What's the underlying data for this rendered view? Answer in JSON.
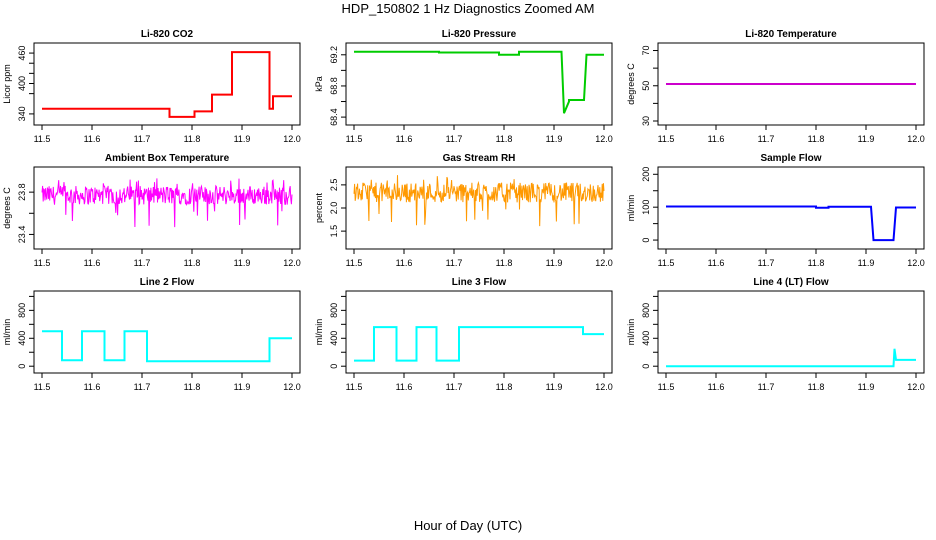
{
  "page": {
    "title": "HDP_150802  1 Hz Diagnostics Zoomed AM",
    "xlabel": "Hour of Day (UTC)"
  },
  "chart_data": [
    {
      "type": "line",
      "title": "Li-820 CO2",
      "ylabel": "Licor ppm",
      "color": "#ff0000",
      "xlim": [
        11.5,
        12.0
      ],
      "ylim": [
        326,
        472
      ],
      "xticks": [
        "11.5",
        "11.6",
        "11.7",
        "11.8",
        "11.9",
        "12.0"
      ],
      "yticks": [
        340,
        400,
        460
      ],
      "yticks_minor": [
        380,
        420,
        440
      ],
      "x": [
        11.5,
        11.755,
        11.755,
        11.805,
        11.805,
        11.84,
        11.84,
        11.88,
        11.88,
        11.955,
        11.955,
        11.962,
        11.962,
        12.0
      ],
      "y": [
        350,
        350,
        334,
        334,
        345,
        345,
        378,
        378,
        462,
        462,
        350,
        350,
        375,
        375
      ]
    },
    {
      "type": "line",
      "title": "Li-820 Pressure",
      "ylabel": "kPa",
      "color": "#00cc00",
      "xlim": [
        11.5,
        12.0
      ],
      "ylim": [
        68.35,
        69.3
      ],
      "xticks": [
        "11.5",
        "11.6",
        "11.7",
        "11.8",
        "11.9",
        "12.0"
      ],
      "yticks": [
        "68.4",
        "68.8",
        "69.2"
      ],
      "yticks_minor": [
        "68.6",
        "69.0"
      ],
      "x": [
        11.5,
        11.67,
        11.67,
        11.79,
        11.79,
        11.83,
        11.83,
        11.915,
        11.92,
        11.93,
        11.93,
        11.96,
        11.965,
        11.975,
        12.0
      ],
      "y": [
        69.24,
        69.24,
        69.23,
        69.23,
        69.2,
        69.2,
        69.24,
        69.24,
        68.45,
        68.6,
        68.62,
        68.62,
        69.2,
        69.2,
        69.2
      ]
    },
    {
      "type": "line",
      "title": "Li-820 Temperature",
      "ylabel": "degrees C",
      "color": "#cc00cc",
      "xlim": [
        11.5,
        12.0
      ],
      "ylim": [
        30,
        72
      ],
      "xticks": [
        "11.5",
        "11.6",
        "11.7",
        "11.8",
        "11.9",
        "12.0"
      ],
      "yticks": [
        30,
        50,
        70
      ],
      "yticks_minor": [
        40,
        60
      ],
      "x": [
        11.5,
        12.0
      ],
      "y": [
        51,
        51
      ]
    },
    {
      "type": "line",
      "title": "Ambient Box Temperature",
      "ylabel": "degrees C",
      "color": "#ff00ff",
      "xlim": [
        11.5,
        12.0
      ],
      "ylim": [
        23.3,
        24.0
      ],
      "xticks": [
        "11.5",
        "11.6",
        "11.7",
        "11.8",
        "11.9",
        "12.0"
      ],
      "yticks": [
        "23.4",
        "23.8"
      ],
      "yticks_minor": [
        "23.6"
      ],
      "band": [
        23.68,
        23.86
      ]
    },
    {
      "type": "line",
      "title": "Gas Stream RH",
      "ylabel": "percent",
      "color": "#ff9900",
      "xlim": [
        11.5,
        12.0
      ],
      "ylim": [
        1.2,
        2.8
      ],
      "xticks": [
        "11.5",
        "11.6",
        "11.7",
        "11.8",
        "11.9",
        "12.0"
      ],
      "yticks": [
        "1.5",
        "2.0",
        "2.5"
      ],
      "yticks_minor": [],
      "band": [
        2.12,
        2.55
      ]
    },
    {
      "type": "line",
      "title": "Sample Flow",
      "ylabel": "ml/min",
      "color": "#0000ff",
      "xlim": [
        11.5,
        12.0
      ],
      "ylim": [
        -15,
        210
      ],
      "xticks": [
        "11.5",
        "11.6",
        "11.7",
        "11.8",
        "11.9",
        "12.0"
      ],
      "yticks": [
        0,
        100,
        200
      ],
      "yticks_minor": [
        50,
        150
      ],
      "x": [
        11.5,
        11.8,
        11.8,
        11.825,
        11.825,
        11.91,
        11.915,
        11.955,
        11.96,
        12.0
      ],
      "y": [
        102,
        102,
        98,
        98,
        101,
        101,
        0,
        0,
        99,
        99
      ]
    },
    {
      "type": "line",
      "title": "Line 2 Flow",
      "ylabel": "ml/min",
      "color": "#00ffff",
      "xlim": [
        11.5,
        12.0
      ],
      "ylim": [
        -40,
        1020
      ],
      "xticks": [
        "11.5",
        "11.6",
        "11.7",
        "11.8",
        "11.9",
        "12.0"
      ],
      "yticks": [
        0,
        400,
        800
      ],
      "yticks_minor": [
        200,
        600,
        1000
      ],
      "x": [
        11.5,
        11.54,
        11.54,
        11.58,
        11.58,
        11.625,
        11.625,
        11.665,
        11.665,
        11.71,
        11.71,
        11.955,
        11.955,
        12.0
      ],
      "y": [
        500,
        500,
        85,
        85,
        500,
        500,
        85,
        85,
        500,
        500,
        70,
        70,
        400,
        400
      ]
    },
    {
      "type": "line",
      "title": "Line 3 Flow",
      "ylabel": "ml/min",
      "color": "#00ffff",
      "xlim": [
        11.5,
        12.0
      ],
      "ylim": [
        -40,
        1020
      ],
      "xticks": [
        "11.5",
        "11.6",
        "11.7",
        "11.8",
        "11.9",
        "12.0"
      ],
      "yticks": [
        0,
        400,
        800
      ],
      "yticks_minor": [
        200,
        600,
        1000
      ],
      "x": [
        11.5,
        11.54,
        11.54,
        11.585,
        11.585,
        11.625,
        11.625,
        11.665,
        11.665,
        11.71,
        11.71,
        11.958,
        11.958,
        12.0
      ],
      "y": [
        80,
        80,
        560,
        560,
        80,
        80,
        560,
        560,
        80,
        80,
        560,
        560,
        460,
        460
      ]
    },
    {
      "type": "line",
      "title": "Line 4 (LT) Flow",
      "ylabel": "ml/min",
      "color": "#00ffff",
      "xlim": [
        11.5,
        12.0
      ],
      "ylim": [
        -40,
        1020
      ],
      "xticks": [
        "11.5",
        "11.6",
        "11.7",
        "11.8",
        "11.9",
        "12.0"
      ],
      "yticks": [
        0,
        400,
        800
      ],
      "yticks_minor": [
        200,
        600,
        1000
      ],
      "x": [
        11.5,
        11.955,
        11.957,
        11.96,
        11.962,
        11.965,
        12.0
      ],
      "y": [
        0,
        0,
        250,
        90,
        90,
        90,
        90
      ]
    }
  ]
}
